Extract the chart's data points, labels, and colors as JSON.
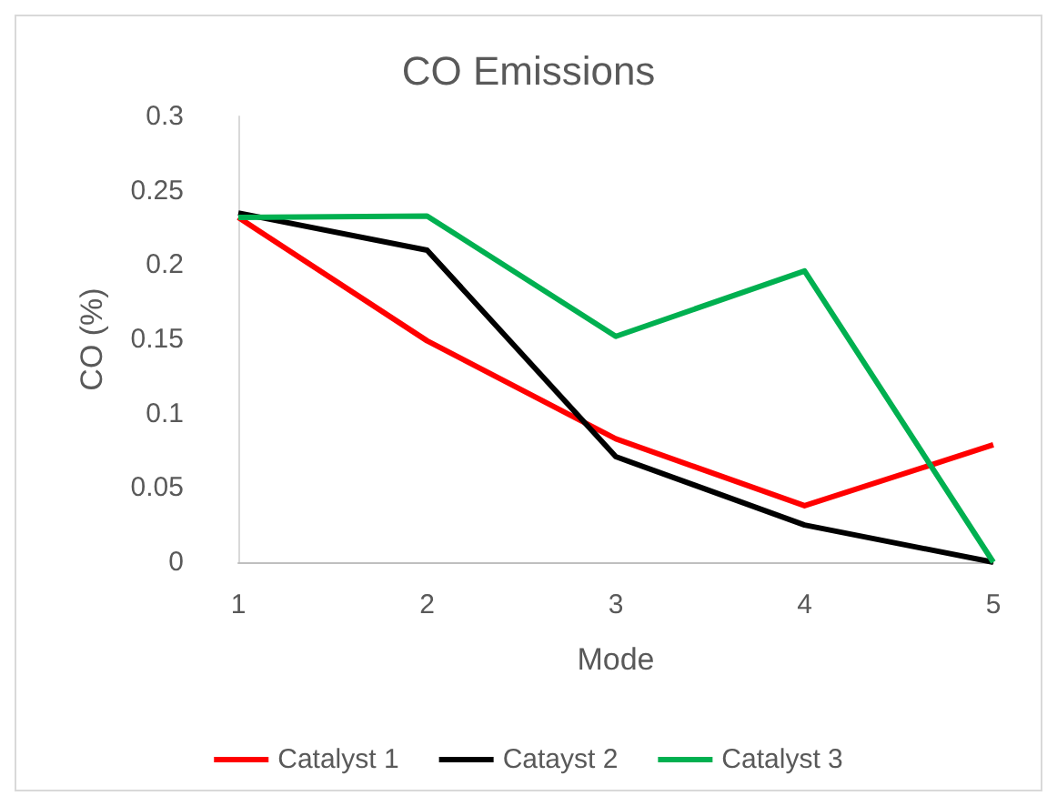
{
  "chart_data": {
    "type": "line",
    "title": "CO Emissions",
    "xlabel": "Mode",
    "ylabel": "CO (%)",
    "categories": [
      "1",
      "2",
      "3",
      "4",
      "5"
    ],
    "series": [
      {
        "name": "Catalyst 1",
        "color": "#ff0000",
        "values": [
          0.232,
          0.149,
          0.083,
          0.038,
          0.079
        ]
      },
      {
        "name": "Catayst 2",
        "color": "#000000",
        "values": [
          0.235,
          0.21,
          0.071,
          0.025,
          0
        ]
      },
      {
        "name": "Catalyst 3",
        "color": "#00b050",
        "values": [
          0.232,
          0.233,
          0.152,
          0.196,
          0
        ]
      }
    ],
    "ylim": [
      0,
      0.3
    ],
    "yticks": [
      0,
      0.05,
      0.1,
      0.15,
      0.2,
      0.25,
      0.3
    ],
    "grid": false,
    "legend": "bottom",
    "marker": "none",
    "line_style": "solid"
  }
}
